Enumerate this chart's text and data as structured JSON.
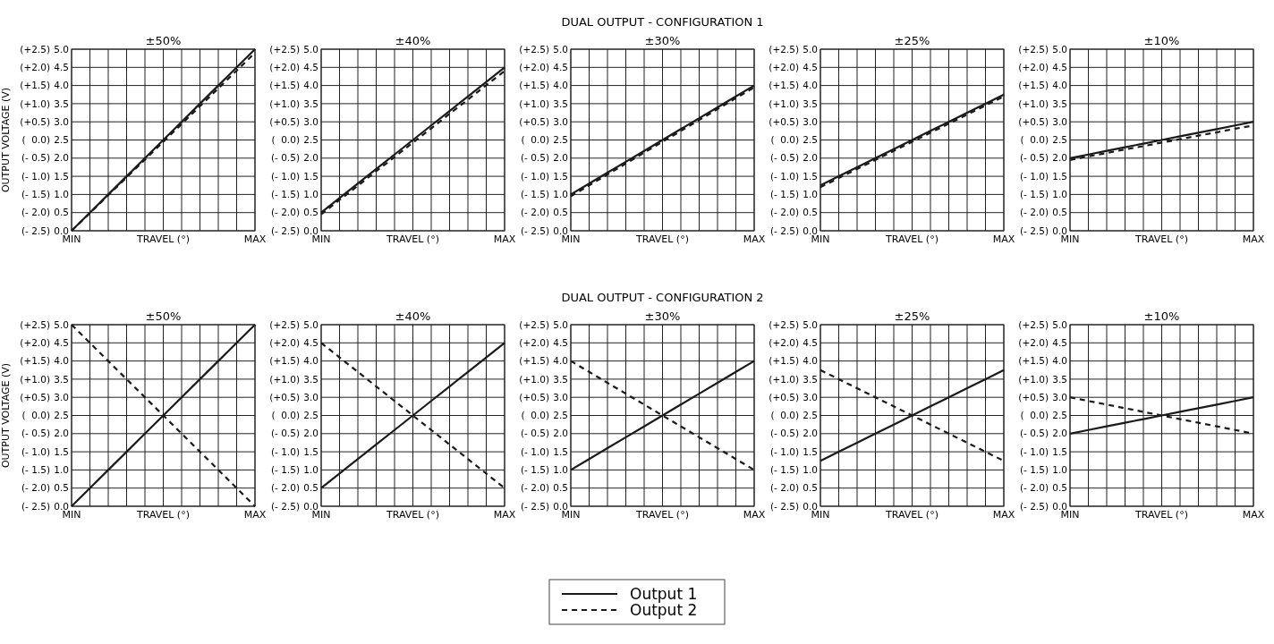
{
  "chart_data": [
    {
      "type": "line",
      "title": "±50%",
      "y2label": "OUTPUT VOLTAGE (V)",
      "xlabel": "TRAVEL (°)",
      "categories": [
        "MIN",
        null,
        null,
        null,
        null,
        null,
        null,
        null,
        null,
        null,
        "MAX"
      ],
      "ylim": [
        0,
        5
      ],
      "yticks": [
        {
          "value": 0,
          "label": "0.0"
        },
        0.5,
        {
          "value": 1,
          "label": "1.0"
        },
        1.5,
        {
          "value": 2,
          "label": "2.0"
        },
        2.5,
        {
          "value": 3,
          "label": "3.0"
        },
        3.5,
        {
          "value": 4,
          "label": "4.0"
        },
        4.5,
        {
          "value": 5,
          "label": "5.0"
        }
      ],
      "y2lim": [
        -2.5,
        2.5
      ],
      "y2ticks": [
        {
          "value": -2.5,
          "label": "(- 2.5)"
        },
        {
          "value": -2,
          "label": "(- 2.0)"
        },
        {
          "value": -1.5,
          "label": "(- 1.5)"
        },
        {
          "value": -1,
          "label": "(- 1.0)"
        },
        {
          "value": -0.5,
          "label": "(- 0.5)"
        },
        {
          "value": 0,
          "label": "(  0.0)"
        },
        {
          "value": 0.5,
          "label": "(+0.5)"
        },
        {
          "value": 1,
          "label": "(+1.0)"
        },
        {
          "value": 1.5,
          "label": "(+1.5)"
        },
        {
          "value": 2,
          "label": "(+2.0)"
        },
        {
          "value": 2.5,
          "label": "(+2.5)"
        }
      ],
      "grid": true,
      "series": [
        {
          "color": "#1a1a1a",
          "line_style": "solid",
          "values": [
            0,
            0.5,
            1,
            1.5,
            2,
            2.5,
            3,
            3.5,
            4,
            4.5,
            5
          ]
        },
        {
          "color": "#1a1a1a",
          "line_style": "dashed",
          "values": [
            0,
            0.49,
            0.98,
            1.47,
            1.96,
            2.45,
            2.94,
            3.43,
            3.92,
            4.41,
            4.9
          ]
        }
      ]
    },
    {
      "type": "line",
      "title": "±40%",
      "xlabel": "TRAVEL (°)",
      "categories": [
        "MIN",
        null,
        null,
        null,
        null,
        null,
        null,
        null,
        null,
        null,
        "MAX"
      ],
      "ylim": [
        0,
        5
      ],
      "yticks": [
        {
          "value": 0,
          "label": "0.0"
        },
        0.5,
        {
          "value": 1,
          "label": "1.0"
        },
        1.5,
        {
          "value": 2,
          "label": "2.0"
        },
        2.5,
        {
          "value": 3,
          "label": "3.0"
        },
        3.5,
        {
          "value": 4,
          "label": "4.0"
        },
        4.5,
        {
          "value": 5,
          "label": "5.0"
        }
      ],
      "y2lim": [
        -2.5,
        2.5
      ],
      "y2ticks": [
        {
          "value": -2.5,
          "label": "(- 2.5)"
        },
        {
          "value": -2,
          "label": "(- 2.0)"
        },
        {
          "value": -1.5,
          "label": "(- 1.5)"
        },
        {
          "value": -1,
          "label": "(- 1.0)"
        },
        {
          "value": -0.5,
          "label": "(- 0.5)"
        },
        {
          "value": 0,
          "label": "(  0.0)"
        },
        {
          "value": 0.5,
          "label": "(+0.5)"
        },
        {
          "value": 1,
          "label": "(+1.0)"
        },
        {
          "value": 1.5,
          "label": "(+1.5)"
        },
        {
          "value": 2,
          "label": "(+2.0)"
        },
        {
          "value": 2.5,
          "label": "(+2.5)"
        }
      ],
      "grid": true,
      "series": [
        {
          "color": "#1a1a1a",
          "line_style": "solid",
          "values": [
            0.5,
            0.9,
            1.3,
            1.7,
            2.1,
            2.5,
            2.9,
            3.3,
            3.7,
            4.1,
            4.5
          ]
        },
        {
          "color": "#1a1a1a",
          "line_style": "dashed",
          "values": [
            0.45,
            0.85,
            1.24,
            1.64,
            2.03,
            2.43,
            2.82,
            3.22,
            3.61,
            4.01,
            4.4
          ]
        }
      ]
    },
    {
      "type": "line",
      "title": "±30%",
      "xlabel": "TRAVEL (°)",
      "categories": [
        "MIN",
        null,
        null,
        null,
        null,
        null,
        null,
        null,
        null,
        null,
        "MAX"
      ],
      "ylim": [
        0,
        5
      ],
      "yticks": [
        {
          "value": 0,
          "label": "0.0"
        },
        0.5,
        {
          "value": 1,
          "label": "1.0"
        },
        1.5,
        {
          "value": 2,
          "label": "2.0"
        },
        2.5,
        {
          "value": 3,
          "label": "3.0"
        },
        3.5,
        {
          "value": 4,
          "label": "4.0"
        },
        4.5,
        {
          "value": 5,
          "label": "5.0"
        }
      ],
      "y2lim": [
        -2.5,
        2.5
      ],
      "y2ticks": [
        {
          "value": -2.5,
          "label": "(- 2.5)"
        },
        {
          "value": -2,
          "label": "(- 2.0)"
        },
        {
          "value": -1.5,
          "label": "(- 1.5)"
        },
        {
          "value": -1,
          "label": "(- 1.0)"
        },
        {
          "value": -0.5,
          "label": "(- 0.5)"
        },
        {
          "value": 0,
          "label": "(  0.0)"
        },
        {
          "value": 0.5,
          "label": "(+0.5)"
        },
        {
          "value": 1,
          "label": "(+1.0)"
        },
        {
          "value": 1.5,
          "label": "(+1.5)"
        },
        {
          "value": 2,
          "label": "(+2.0)"
        },
        {
          "value": 2.5,
          "label": "(+2.5)"
        }
      ],
      "grid": true,
      "series": [
        {
          "color": "#1a1a1a",
          "line_style": "solid",
          "values": [
            1,
            1.3,
            1.6,
            1.9,
            2.2,
            2.5,
            2.8,
            3.1,
            3.4,
            3.7,
            4
          ]
        },
        {
          "color": "#1a1a1a",
          "line_style": "dashed",
          "values": [
            0.95,
            1.25,
            1.55,
            1.85,
            2.15,
            2.45,
            2.75,
            3.05,
            3.35,
            3.65,
            3.95
          ]
        }
      ],
      "annotations": [
        "DUAL OUTPUT - CONFIGURATION 1"
      ]
    },
    {
      "type": "line",
      "title": "±25%",
      "xlabel": "TRAVEL (°)",
      "categories": [
        "MIN",
        null,
        null,
        null,
        null,
        null,
        null,
        null,
        null,
        null,
        "MAX"
      ],
      "ylim": [
        0,
        5
      ],
      "yticks": [
        {
          "value": 0,
          "label": "0.0"
        },
        0.5,
        {
          "value": 1,
          "label": "1.0"
        },
        1.5,
        {
          "value": 2,
          "label": "2.0"
        },
        2.5,
        {
          "value": 3,
          "label": "3.0"
        },
        3.5,
        {
          "value": 4,
          "label": "4.0"
        },
        4.5,
        {
          "value": 5,
          "label": "5.0"
        }
      ],
      "y2lim": [
        -2.5,
        2.5
      ],
      "y2ticks": [
        {
          "value": -2.5,
          "label": "(- 2.5)"
        },
        {
          "value": -2,
          "label": "(- 2.0)"
        },
        {
          "value": -1.5,
          "label": "(- 1.5)"
        },
        {
          "value": -1,
          "label": "(- 1.0)"
        },
        {
          "value": -0.5,
          "label": "(- 0.5)"
        },
        {
          "value": 0,
          "label": "(  0.0)"
        },
        {
          "value": 0.5,
          "label": "(+0.5)"
        },
        {
          "value": 1,
          "label": "(+1.0)"
        },
        {
          "value": 1.5,
          "label": "(+1.5)"
        },
        {
          "value": 2,
          "label": "(+2.0)"
        },
        {
          "value": 2.5,
          "label": "(+2.5)"
        }
      ],
      "grid": true,
      "series": [
        {
          "color": "#1a1a1a",
          "line_style": "solid",
          "values": [
            1.25,
            1.5,
            1.75,
            2,
            2.25,
            2.5,
            2.75,
            3,
            3.25,
            3.5,
            3.75
          ]
        },
        {
          "color": "#1a1a1a",
          "line_style": "dashed",
          "values": [
            1.2,
            1.45,
            1.7,
            1.95,
            2.2,
            2.45,
            2.7,
            2.95,
            3.2,
            3.45,
            3.7
          ]
        }
      ]
    },
    {
      "type": "line",
      "title": "±10%",
      "xlabel": "TRAVEL (°)",
      "categories": [
        "MIN",
        null,
        null,
        null,
        null,
        null,
        null,
        null,
        null,
        null,
        "MAX"
      ],
      "ylim": [
        0,
        5
      ],
      "yticks": [
        {
          "value": 0,
          "label": "0.0"
        },
        0.5,
        {
          "value": 1,
          "label": "1.0"
        },
        1.5,
        {
          "value": 2,
          "label": "2.0"
        },
        2.5,
        {
          "value": 3,
          "label": "3.0"
        },
        3.5,
        {
          "value": 4,
          "label": "4.0"
        },
        4.5,
        {
          "value": 5,
          "label": "5.0"
        }
      ],
      "y2lim": [
        -2.5,
        2.5
      ],
      "y2ticks": [
        {
          "value": -2.5,
          "label": "(- 2.5)"
        },
        {
          "value": -2,
          "label": "(- 2.0)"
        },
        {
          "value": -1.5,
          "label": "(- 1.5)"
        },
        {
          "value": -1,
          "label": "(- 1.0)"
        },
        {
          "value": -0.5,
          "label": "(- 0.5)"
        },
        {
          "value": 0,
          "label": "(  0.0)"
        },
        {
          "value": 0.5,
          "label": "(+0.5)"
        },
        {
          "value": 1,
          "label": "(+1.0)"
        },
        {
          "value": 1.5,
          "label": "(+1.5)"
        },
        {
          "value": 2,
          "label": "(+2.0)"
        },
        {
          "value": 2.5,
          "label": "(+2.5)"
        }
      ],
      "grid": true,
      "series": [
        {
          "color": "#1a1a1a",
          "line_style": "solid",
          "values": [
            2,
            2.1,
            2.2,
            2.3,
            2.4,
            2.5,
            2.6,
            2.7,
            2.8,
            2.9,
            3
          ]
        },
        {
          "color": "#1a1a1a",
          "line_style": "dashed",
          "values": [
            1.95,
            2.05,
            2.14,
            2.24,
            2.33,
            2.43,
            2.52,
            2.62,
            2.71,
            2.81,
            2.9
          ]
        }
      ]
    },
    {
      "type": "line",
      "title": "±50%",
      "y2label": "OUTPUT VOLTAGE (V)",
      "xlabel": "TRAVEL (°)",
      "categories": [
        "MIN",
        null,
        null,
        null,
        null,
        null,
        null,
        null,
        null,
        null,
        "MAX"
      ],
      "ylim": [
        0,
        5
      ],
      "yticks": [
        {
          "value": 0,
          "label": "0.0"
        },
        0.5,
        {
          "value": 1,
          "label": "1.0"
        },
        1.5,
        {
          "value": 2,
          "label": "2.0"
        },
        2.5,
        {
          "value": 3,
          "label": "3.0"
        },
        3.5,
        {
          "value": 4,
          "label": "4.0"
        },
        4.5,
        {
          "value": 5,
          "label": "5.0"
        }
      ],
      "y2lim": [
        -2.5,
        2.5
      ],
      "y2ticks": [
        {
          "value": -2.5,
          "label": "(- 2.5)"
        },
        {
          "value": -2,
          "label": "(- 2.0)"
        },
        {
          "value": -1.5,
          "label": "(- 1.5)"
        },
        {
          "value": -1,
          "label": "(- 1.0)"
        },
        {
          "value": -0.5,
          "label": "(- 0.5)"
        },
        {
          "value": 0,
          "label": "(  0.0)"
        },
        {
          "value": 0.5,
          "label": "(+0.5)"
        },
        {
          "value": 1,
          "label": "(+1.0)"
        },
        {
          "value": 1.5,
          "label": "(+1.5)"
        },
        {
          "value": 2,
          "label": "(+2.0)"
        },
        {
          "value": 2.5,
          "label": "(+2.5)"
        }
      ],
      "grid": true,
      "series": [
        {
          "color": "#1a1a1a",
          "line_style": "solid",
          "values": [
            0,
            0.5,
            1,
            1.5,
            2,
            2.5,
            3,
            3.5,
            4,
            4.5,
            5
          ]
        },
        {
          "color": "#1a1a1a",
          "line_style": "dashed",
          "values": [
            5,
            4.5,
            4,
            3.5,
            3,
            2.5,
            2,
            1.5,
            1,
            0.5,
            0
          ]
        }
      ]
    },
    {
      "type": "line",
      "title": "±40%",
      "xlabel": "TRAVEL (°)",
      "categories": [
        "MIN",
        null,
        null,
        null,
        null,
        null,
        null,
        null,
        null,
        null,
        "MAX"
      ],
      "ylim": [
        0,
        5
      ],
      "yticks": [
        {
          "value": 0,
          "label": "0.0"
        },
        0.5,
        {
          "value": 1,
          "label": "1.0"
        },
        1.5,
        {
          "value": 2,
          "label": "2.0"
        },
        2.5,
        {
          "value": 3,
          "label": "3.0"
        },
        3.5,
        {
          "value": 4,
          "label": "4.0"
        },
        4.5,
        {
          "value": 5,
          "label": "5.0"
        }
      ],
      "y2lim": [
        -2.5,
        2.5
      ],
      "y2ticks": [
        {
          "value": -2.5,
          "label": "(- 2.5)"
        },
        {
          "value": -2,
          "label": "(- 2.0)"
        },
        {
          "value": -1.5,
          "label": "(- 1.5)"
        },
        {
          "value": -1,
          "label": "(- 1.0)"
        },
        {
          "value": -0.5,
          "label": "(- 0.5)"
        },
        {
          "value": 0,
          "label": "(  0.0)"
        },
        {
          "value": 0.5,
          "label": "(+0.5)"
        },
        {
          "value": 1,
          "label": "(+1.0)"
        },
        {
          "value": 1.5,
          "label": "(+1.5)"
        },
        {
          "value": 2,
          "label": "(+2.0)"
        },
        {
          "value": 2.5,
          "label": "(+2.5)"
        }
      ],
      "grid": true,
      "series": [
        {
          "color": "#1a1a1a",
          "line_style": "solid",
          "values": [
            0.5,
            0.9,
            1.3,
            1.7,
            2.1,
            2.5,
            2.9,
            3.3,
            3.7,
            4.1,
            4.5
          ]
        },
        {
          "color": "#1a1a1a",
          "line_style": "dashed",
          "values": [
            4.5,
            4.1,
            3.7,
            3.3,
            2.9,
            2.5,
            2.1,
            1.7,
            1.3,
            0.9,
            0.5
          ]
        }
      ]
    },
    {
      "type": "line",
      "title": "±30%",
      "xlabel": "TRAVEL (°)",
      "categories": [
        "MIN",
        null,
        null,
        null,
        null,
        null,
        null,
        null,
        null,
        null,
        "MAX"
      ],
      "ylim": [
        0,
        5
      ],
      "yticks": [
        {
          "value": 0,
          "label": "0.0"
        },
        0.5,
        {
          "value": 1,
          "label": "1.0"
        },
        1.5,
        {
          "value": 2,
          "label": "2.0"
        },
        2.5,
        {
          "value": 3,
          "label": "3.0"
        },
        3.5,
        {
          "value": 4,
          "label": "4.0"
        },
        4.5,
        {
          "value": 5,
          "label": "5.0"
        }
      ],
      "y2lim": [
        -2.5,
        2.5
      ],
      "y2ticks": [
        {
          "value": -2.5,
          "label": "(- 2.5)"
        },
        {
          "value": -2,
          "label": "(- 2.0)"
        },
        {
          "value": -1.5,
          "label": "(- 1.5)"
        },
        {
          "value": -1,
          "label": "(- 1.0)"
        },
        {
          "value": -0.5,
          "label": "(- 0.5)"
        },
        {
          "value": 0,
          "label": "(  0.0)"
        },
        {
          "value": 0.5,
          "label": "(+0.5)"
        },
        {
          "value": 1,
          "label": "(+1.0)"
        },
        {
          "value": 1.5,
          "label": "(+1.5)"
        },
        {
          "value": 2,
          "label": "(+2.0)"
        },
        {
          "value": 2.5,
          "label": "(+2.5)"
        }
      ],
      "grid": true,
      "series": [
        {
          "color": "#1a1a1a",
          "line_style": "solid",
          "values": [
            1,
            1.3,
            1.6,
            1.9,
            2.2,
            2.5,
            2.8,
            3.1,
            3.4,
            3.7,
            4
          ]
        },
        {
          "color": "#1a1a1a",
          "line_style": "dashed",
          "values": [
            4,
            3.7,
            3.4,
            3.1,
            2.8,
            2.5,
            2.2,
            1.9,
            1.6,
            1.3,
            1
          ]
        }
      ],
      "annotations": [
        "DUAL OUTPUT - CONFIGURATION 2"
      ]
    },
    {
      "type": "line",
      "title": "±25%",
      "xlabel": "TRAVEL (°)",
      "categories": [
        "MIN",
        null,
        null,
        null,
        null,
        null,
        null,
        null,
        null,
        null,
        "MAX"
      ],
      "ylim": [
        0,
        5
      ],
      "yticks": [
        {
          "value": 0,
          "label": "0.0"
        },
        0.5,
        {
          "value": 1,
          "label": "1.0"
        },
        1.5,
        {
          "value": 2,
          "label": "2.0"
        },
        2.5,
        {
          "value": 3,
          "label": "3.0"
        },
        3.5,
        {
          "value": 4,
          "label": "4.0"
        },
        4.5,
        {
          "value": 5,
          "label": "5.0"
        }
      ],
      "y2lim": [
        -2.5,
        2.5
      ],
      "y2ticks": [
        {
          "value": -2.5,
          "label": "(- 2.5)"
        },
        {
          "value": -2,
          "label": "(- 2.0)"
        },
        {
          "value": -1.5,
          "label": "(- 1.5)"
        },
        {
          "value": -1,
          "label": "(- 1.0)"
        },
        {
          "value": -0.5,
          "label": "(- 0.5)"
        },
        {
          "value": 0,
          "label": "(  0.0)"
        },
        {
          "value": 0.5,
          "label": "(+0.5)"
        },
        {
          "value": 1,
          "label": "(+1.0)"
        },
        {
          "value": 1.5,
          "label": "(+1.5)"
        },
        {
          "value": 2,
          "label": "(+2.0)"
        },
        {
          "value": 2.5,
          "label": "(+2.5)"
        }
      ],
      "grid": true,
      "series": [
        {
          "color": "#1a1a1a",
          "line_style": "solid",
          "values": [
            1.25,
            1.5,
            1.75,
            2,
            2.25,
            2.5,
            2.75,
            3,
            3.25,
            3.5,
            3.75
          ]
        },
        {
          "color": "#1a1a1a",
          "line_style": "dashed",
          "values": [
            3.75,
            3.5,
            3.25,
            3,
            2.75,
            2.5,
            2.25,
            2,
            1.75,
            1.5,
            1.25
          ]
        }
      ]
    },
    {
      "type": "line",
      "title": "±10%",
      "xlabel": "TRAVEL (°)",
      "categories": [
        "MIN",
        null,
        null,
        null,
        null,
        null,
        null,
        null,
        null,
        null,
        "MAX"
      ],
      "ylim": [
        0,
        5
      ],
      "yticks": [
        {
          "value": 0,
          "label": "0.0"
        },
        0.5,
        {
          "value": 1,
          "label": "1.0"
        },
        1.5,
        {
          "value": 2,
          "label": "2.0"
        },
        2.5,
        {
          "value": 3,
          "label": "3.0"
        },
        3.5,
        {
          "value": 4,
          "label": "4.0"
        },
        4.5,
        {
          "value": 5,
          "label": "5.0"
        }
      ],
      "y2lim": [
        -2.5,
        2.5
      ],
      "y2ticks": [
        {
          "value": -2.5,
          "label": "(- 2.5)"
        },
        {
          "value": -2,
          "label": "(- 2.0)"
        },
        {
          "value": -1.5,
          "label": "(- 1.5)"
        },
        {
          "value": -1,
          "label": "(- 1.0)"
        },
        {
          "value": -0.5,
          "label": "(- 0.5)"
        },
        {
          "value": 0,
          "label": "(  0.0)"
        },
        {
          "value": 0.5,
          "label": "(+0.5)"
        },
        {
          "value": 1,
          "label": "(+1.0)"
        },
        {
          "value": 1.5,
          "label": "(+1.5)"
        },
        {
          "value": 2,
          "label": "(+2.0)"
        },
        {
          "value": 2.5,
          "label": "(+2.5)"
        }
      ],
      "grid": true,
      "legend": "bottom",
      "series": [
        {
          "name": "Output 1",
          "color": "#1a1a1a",
          "line_style": "solid",
          "values": [
            2,
            2.1,
            2.2,
            2.3,
            2.4,
            2.5,
            2.6,
            2.7,
            2.8,
            2.9,
            3
          ]
        },
        {
          "name": "Output 2",
          "color": "#1a1a1a",
          "line_style": "dashed",
          "values": [
            3,
            2.9,
            2.8,
            2.7,
            2.6,
            2.5,
            2.4,
            2.3,
            2.2,
            2.1,
            2
          ]
        }
      ]
    }
  ]
}
